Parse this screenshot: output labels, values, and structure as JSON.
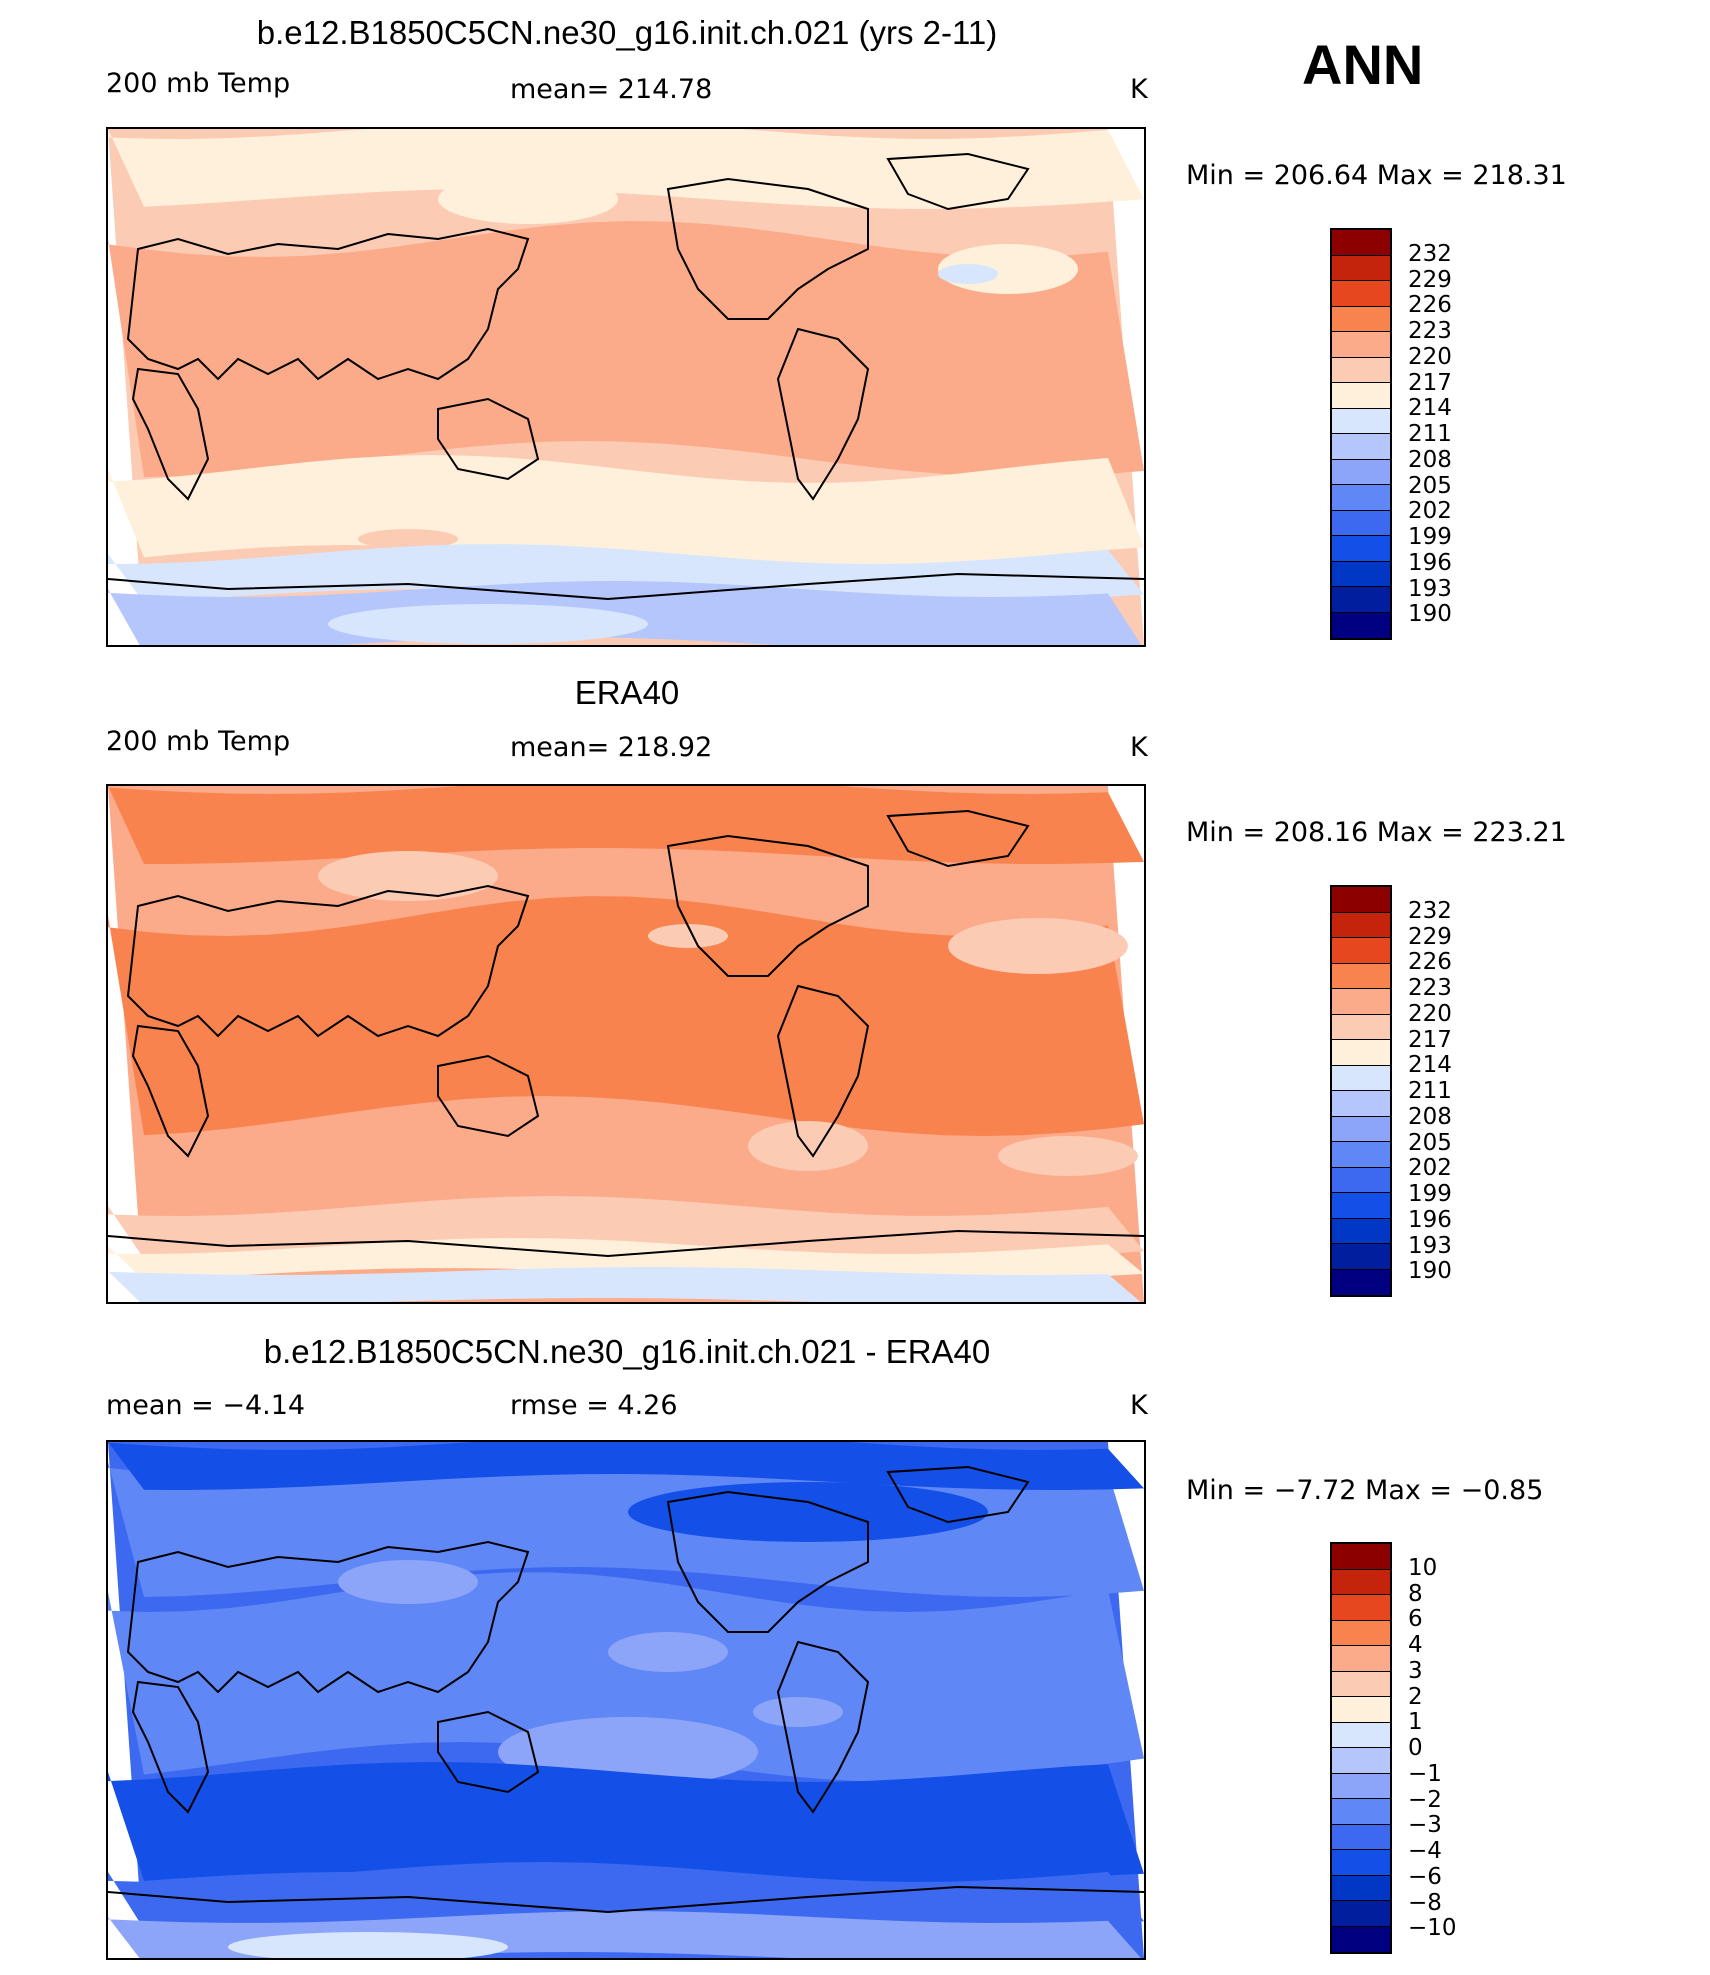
{
  "season": "ANN",
  "colors": {
    "warm_scale": [
      "#000080",
      "#001e9e",
      "#0037c4",
      "#1450e8",
      "#3c69f0",
      "#5f87f5",
      "#8ca5f8",
      "#b4c6fb",
      "#d7e6fc",
      "#fff0dc",
      "#fccbb4",
      "#fbab8a",
      "#f8834e",
      "#e6471e",
      "#c4240c",
      "#8c0000"
    ],
    "diff_scale": [
      "#000080",
      "#001e9e",
      "#0037c4",
      "#1450e8",
      "#3c69f0",
      "#5f87f5",
      "#8ca5f8",
      "#b4c6fb",
      "#d7e6fc",
      "#fff0dc",
      "#fccbb4",
      "#fbab8a",
      "#f8834e",
      "#e6471e",
      "#c4240c",
      "#8c0000"
    ]
  },
  "panels": [
    {
      "title": "b.e12.B1850C5CN.ne30_g16.init.ch.021 (yrs 2-11)",
      "left": "200 mb Temp",
      "center": "mean=  214.78",
      "units": "K",
      "minmax": "Min  =  206.64  Max  =  218.31",
      "colorbar_labels": [
        "232",
        "229",
        "226",
        "223",
        "220",
        "217",
        "214",
        "211",
        "208",
        "205",
        "202",
        "199",
        "196",
        "193",
        "190"
      ],
      "field": "model"
    },
    {
      "title": "ERA40",
      "left": "200 mb Temp",
      "center": "mean=  218.92",
      "units": "K",
      "minmax": "Min  =  208.16  Max  =  223.21",
      "colorbar_labels": [
        "232",
        "229",
        "226",
        "223",
        "220",
        "217",
        "214",
        "211",
        "208",
        "205",
        "202",
        "199",
        "196",
        "193",
        "190"
      ],
      "field": "obs"
    },
    {
      "title": "b.e12.B1850C5CN.ne30_g16.init.ch.021 - ERA40",
      "left": "mean  =     −4.14",
      "center": "rmse  =      4.26",
      "units": "K",
      "minmax": "Min  =    −7.72  Max  =    −0.85",
      "colorbar_labels": [
        "10",
        "8",
        "6",
        "4",
        "3",
        "2",
        "1",
        "0",
        "−1",
        "−2",
        "−3",
        "−4",
        "−6",
        "−8",
        "−10"
      ],
      "field": "diff"
    }
  ]
}
